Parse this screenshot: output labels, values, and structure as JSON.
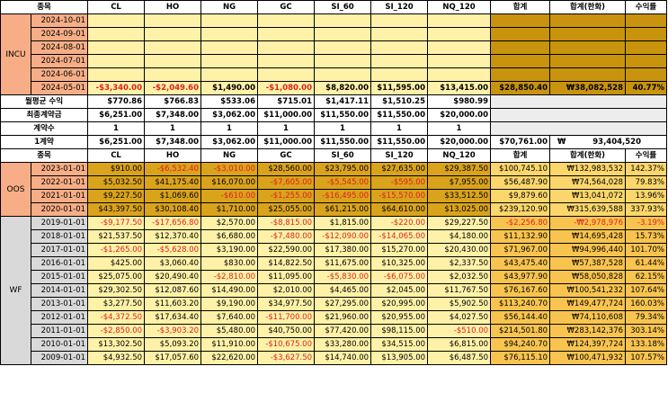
{
  "header_labels": [
    "종목",
    "CL",
    "HO",
    "NG",
    "GC",
    "SI_60",
    "SI_120",
    "NQ_120",
    "합계",
    "합계(한화)",
    "수익률"
  ],
  "incu": {
    "label": "INCU",
    "rows": [
      {
        "date": "2024-10-01",
        "v": [
          "",
          "",
          "",
          "",
          "",
          "",
          ""
        ],
        "sum": "",
        "krw": "",
        "ret": ""
      },
      {
        "date": "2024-09-01",
        "v": [
          "",
          "",
          "",
          "",
          "",
          "",
          ""
        ],
        "sum": "",
        "krw": "",
        "ret": ""
      },
      {
        "date": "2024-08-01",
        "v": [
          "",
          "",
          "",
          "",
          "",
          "",
          ""
        ],
        "sum": "",
        "krw": "",
        "ret": ""
      },
      {
        "date": "2024-07-01",
        "v": [
          "",
          "",
          "",
          "",
          "",
          "",
          ""
        ],
        "sum": "",
        "krw": "",
        "ret": ""
      },
      {
        "date": "2024-06-01",
        "v": [
          "",
          "",
          "",
          "",
          "",
          "",
          ""
        ],
        "sum": "",
        "krw": "",
        "ret": ""
      },
      {
        "date": "2024-05-01",
        "v": [
          "-$3,340.00",
          "-$2,049.60",
          "$1,490.00",
          "-$1,080.00",
          "$8,820.00",
          "$11,595.00",
          "$13,415.00"
        ],
        "sum": "$28,850.40",
        "krw": "₩38,082,528",
        "ret": "40.77%"
      }
    ]
  },
  "summary": {
    "monthly_label": "월평균 수익",
    "monthly": [
      "$770.86",
      "$766.83",
      "$533.06",
      "$715.01",
      "$1,417.11",
      "$1,510.25",
      "$980.99"
    ],
    "final_label": "최종계약금",
    "final": [
      "$6,251.00",
      "$7,348.00",
      "$3,062.00",
      "$11,000.00",
      "$11,550.00",
      "$11,550.00",
      "$20,000.00"
    ],
    "contracts_label": "계약수",
    "contracts": [
      "1",
      "1",
      "1",
      "1",
      "1",
      "1",
      "1"
    ],
    "one_label": "1계약",
    "one": [
      "$6,251.00",
      "$7,348.00",
      "$3,062.00",
      "$11,000.00",
      "$11,550.00",
      "$11,550.00",
      "$20,000.00"
    ],
    "one_sum": "$70,761.00",
    "one_krw_symbol": "₩",
    "one_krw": "93,404,520"
  },
  "oos": {
    "label": "OOS",
    "rows": [
      {
        "date": "2023-01-01",
        "v": [
          "$910.00",
          "-$6,532.40",
          "-$3,010.00",
          "$28,560.00",
          "$23,795.00",
          "$27,635.00",
          "$29,387.50"
        ],
        "sum": "$100,745.10",
        "krw": "₩132,983,532",
        "ret": "142.37%"
      },
      {
        "date": "2022-01-01",
        "v": [
          "$5,032.50",
          "$41,175.40",
          "$16,070.00",
          "-$7,605.00",
          "-$5,545.00",
          "-$595.00",
          "$7,955.00"
        ],
        "sum": "$56,487.90",
        "krw": "₩74,564,028",
        "ret": "79.83%"
      },
      {
        "date": "2021-01-01",
        "v": [
          "$9,227.50",
          "$1,069.60",
          "-$610.00",
          "-$1,255.00",
          "-$16,495.00",
          "-$15,570.00",
          "$33,512.50"
        ],
        "sum": "$9,879.60",
        "krw": "₩13,041,072",
        "ret": "13.96%"
      },
      {
        "date": "2020-01-01",
        "v": [
          "$43,397.50",
          "$30,108.40",
          "$1,710.00",
          "$25,055.00",
          "$61,215.00",
          "$64,610.00",
          "$13,025.00"
        ],
        "sum": "$239,120.90",
        "krw": "₩315,639,588",
        "ret": "337.93%"
      }
    ]
  },
  "wf": {
    "label": "WF",
    "rows": [
      {
        "date": "2019-01-01",
        "v": [
          "-$9,177.50",
          "-$17,656.80",
          "$2,570.00",
          "-$8,815.00",
          "$1,815.00",
          "-$220.00",
          "$29,227.50"
        ],
        "sum": "-$2,256.80",
        "krw": "-₩2,978,976",
        "ret": "-3.19%"
      },
      {
        "date": "2018-01-01",
        "v": [
          "$21,537.50",
          "$12,370.40",
          "$6,680.00",
          "-$7,480.00",
          "-$12,090.00",
          "-$14,065.00",
          "$4,180.00"
        ],
        "sum": "$11,132.90",
        "krw": "₩14,695,428",
        "ret": "15.73%"
      },
      {
        "date": "2017-01-01",
        "v": [
          "-$1,265.00",
          "-$5,628.00",
          "$3,190.00",
          "$22,590.00",
          "$17,380.00",
          "$15,270.00",
          "$20,430.00"
        ],
        "sum": "$71,967.00",
        "krw": "₩94,996,440",
        "ret": "101.70%"
      },
      {
        "date": "2016-01-01",
        "v": [
          "$425.00",
          "$3,060.40",
          "$830.00",
          "$14,822.50",
          "$11,675.00",
          "$10,325.00",
          "$2,337.50"
        ],
        "sum": "$43,475.40",
        "krw": "₩57,387,528",
        "ret": "61.44%"
      },
      {
        "date": "2015-01-01",
        "v": [
          "$25,075.00",
          "$20,490.40",
          "-$2,810.00",
          "$11,095.00",
          "-$5,830.00",
          "-$6,075.00",
          "$2,032.50"
        ],
        "sum": "$43,977.90",
        "krw": "₩58,050,828",
        "ret": "62.15%"
      },
      {
        "date": "2014-01-01",
        "v": [
          "$29,302.50",
          "$12,087.60",
          "$14,490.00",
          "$2,010.00",
          "$4,465.00",
          "$2,045.00",
          "$11,767.50"
        ],
        "sum": "$76,167.60",
        "krw": "₩100,541,232",
        "ret": "107.64%"
      },
      {
        "date": "2013-01-01",
        "v": [
          "$3,277.50",
          "$11,603.20",
          "$9,190.00",
          "$34,977.50",
          "$27,295.00",
          "$20,995.00",
          "$5,902.50"
        ],
        "sum": "$113,240.70",
        "krw": "₩149,477,724",
        "ret": "160.03%"
      },
      {
        "date": "2012-01-01",
        "v": [
          "-$4,372.50",
          "$17,634.40",
          "$7,640.00",
          "-$11,700.00",
          "$21,960.00",
          "$20,955.00",
          "$4,027.50"
        ],
        "sum": "$56,144.40",
        "krw": "₩74,110,608",
        "ret": "79.34%"
      },
      {
        "date": "2011-01-01",
        "v": [
          "-$2,850.00",
          "-$3,903.20",
          "$5,480.00",
          "$40,750.00",
          "$77,420.00",
          "$98,115.00",
          "-$510.00"
        ],
        "sum": "$214,501.80",
        "krw": "₩283,142,376",
        "ret": "303.14%"
      },
      {
        "date": "2010-01-01",
        "v": [
          "$13,302.50",
          "$5,093.20",
          "$11,910.00",
          "-$10,675.00",
          "$33,280.00",
          "$34,515.00",
          "$6,815.00"
        ],
        "sum": "$94,240.70",
        "krw": "₩124,397,724",
        "ret": "133.18%"
      },
      {
        "date": "2009-01-01",
        "v": [
          "$4,932.50",
          "$17,057.60",
          "$22,620.00",
          "-$3,627.50",
          "$14,740.00",
          "$13,905.00",
          "$6,487.50"
        ],
        "sum": "$76,115.10",
        "krw": "₩100,471,932",
        "ret": "107.57%"
      }
    ]
  }
}
